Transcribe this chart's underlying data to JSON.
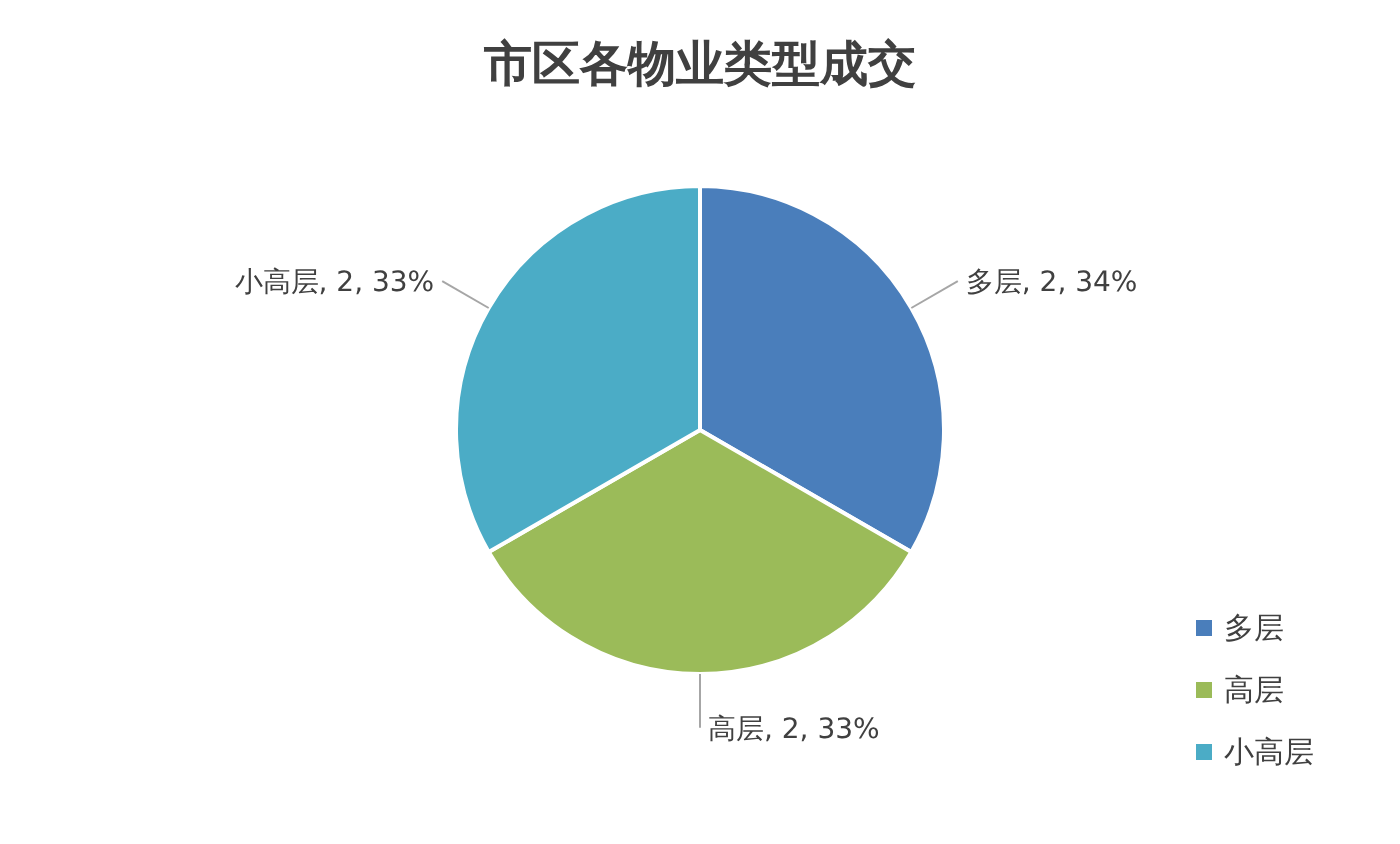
{
  "chart_data": {
    "type": "pie",
    "title": "市区各物业类型成交",
    "categories": [
      "多层",
      "高层",
      "小高层"
    ],
    "values": [
      2,
      2,
      2
    ],
    "value_labels": [
      "多层, 2, 34%",
      "高层, 2, 33%",
      "小高层, 2, 33%"
    ],
    "colors": [
      "#4a7ebb",
      "#9bbb59",
      "#4bacc6"
    ],
    "legend": "bottom right"
  }
}
